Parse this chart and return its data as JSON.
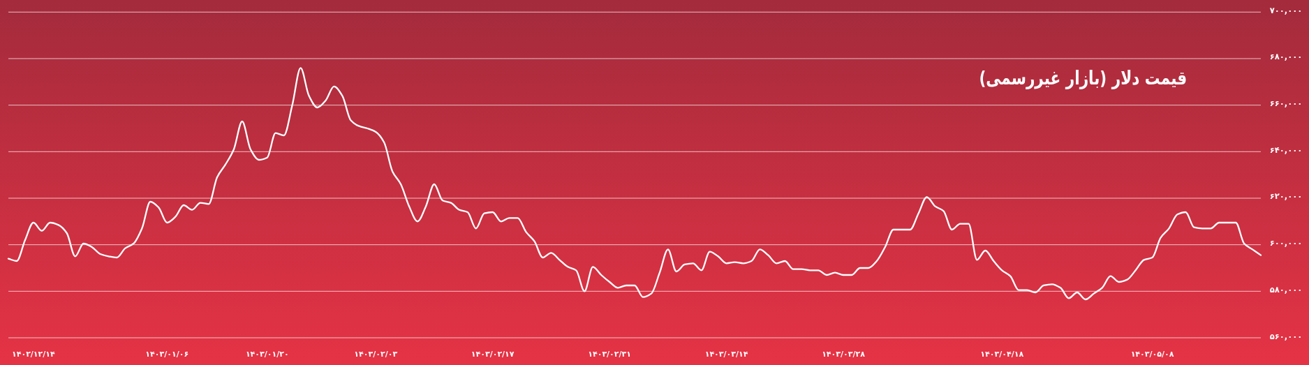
{
  "chart_data": {
    "type": "line",
    "title": "قیمت دلار (بازار غیررسمی)",
    "categories": [
      null,
      null,
      null,
      "۱۴۰۲/۱۲/۱۴",
      null,
      null,
      null,
      null,
      null,
      null,
      null,
      null,
      null,
      null,
      null,
      null,
      null,
      null,
      null,
      "۱۴۰۳/۰۱/۰۶",
      null,
      null,
      null,
      null,
      null,
      null,
      null,
      null,
      null,
      null,
      null,
      "۱۴۰۳/۰۱/۲۰",
      null,
      null,
      null,
      null,
      null,
      null,
      null,
      null,
      null,
      null,
      null,
      null,
      "۱۴۰۳/۰۲/۰۳",
      null,
      null,
      null,
      null,
      null,
      null,
      null,
      null,
      null,
      null,
      null,
      null,
      null,
      "۱۴۰۳/۰۲/۱۷",
      null,
      null,
      null,
      null,
      null,
      null,
      null,
      null,
      null,
      null,
      null,
      null,
      null,
      "۱۴۰۳/۰۲/۳۱",
      null,
      null,
      null,
      null,
      null,
      null,
      null,
      null,
      null,
      null,
      null,
      null,
      null,
      "۱۴۰۳/۰۳/۱۴",
      null,
      null,
      null,
      null,
      null,
      null,
      null,
      null,
      null,
      null,
      null,
      null,
      null,
      "۱۴۰۳/۰۳/۲۸",
      null,
      null,
      null,
      null,
      null,
      null,
      null,
      null,
      null,
      null,
      null,
      null,
      null,
      null,
      null,
      null,
      null,
      null,
      "۱۴۰۳/۰۴/۱۸",
      null,
      null,
      null,
      null,
      null,
      null,
      null,
      null,
      null,
      null,
      null,
      null,
      null,
      null,
      null,
      null,
      null,
      "۱۴۰۳/۰۵/۰۸",
      null,
      null,
      null,
      null,
      null,
      null,
      null,
      null,
      null,
      null,
      null,
      null,
      null
    ],
    "series": [
      {
        "color": "#ffffff",
        "values": [
          594000,
          593000,
          602000,
          609500,
          606000,
          609500,
          608500,
          605000,
          595000,
          600500,
          599000,
          596000,
          595000,
          594500,
          598500,
          600500,
          607000,
          618500,
          616000,
          609500,
          612000,
          617000,
          615000,
          618000,
          617500,
          629000,
          634500,
          641000,
          653000,
          641000,
          636500,
          637500,
          648000,
          647000,
          660000,
          676000,
          664000,
          659000,
          662000,
          668000,
          664000,
          653500,
          651000,
          650000,
          648500,
          644000,
          631500,
          626000,
          616500,
          610000,
          616500,
          626000,
          619000,
          618000,
          615000,
          614000,
          607000,
          613500,
          614000,
          610000,
          611500,
          611500,
          605500,
          601500,
          594500,
          596500,
          593500,
          590500,
          589000,
          580000,
          590500,
          587000,
          584000,
          581500,
          582500,
          582500,
          577500,
          579000,
          588000,
          598000,
          588500,
          591500,
          592000,
          589000,
          597000,
          595000,
          592000,
          592500,
          592000,
          593000,
          598000,
          595500,
          592000,
          593000,
          589500,
          589500,
          589000,
          589000,
          587000,
          588000,
          587000,
          587000,
          590000,
          590000,
          593000,
          599000,
          606500,
          606500,
          606500,
          613500,
          620500,
          616500,
          614500,
          606500,
          609000,
          609000,
          593500,
          597500,
          593000,
          589000,
          586500,
          580500,
          580500,
          579500,
          582500,
          583000,
          581500,
          577000,
          579500,
          576500,
          579000,
          581500,
          586500,
          584000,
          585000,
          589000,
          593500,
          594500,
          603000,
          607000,
          613000,
          614000,
          607500,
          607000,
          607000,
          609500,
          609500,
          609500,
          600500,
          598000,
          595500
        ]
      }
    ],
    "ylim": [
      560000,
      700000
    ],
    "yticks": [
      {
        "value": 560000,
        "label": "۵۶۰,۰۰۰"
      },
      {
        "value": 580000,
        "label": "۵۸۰,۰۰۰"
      },
      {
        "value": 600000,
        "label": "۶۰۰,۰۰۰"
      },
      {
        "value": 620000,
        "label": "۶۲۰,۰۰۰"
      },
      {
        "value": 640000,
        "label": "۶۴۰,۰۰۰"
      },
      {
        "value": 660000,
        "label": "۶۶۰,۰۰۰"
      },
      {
        "value": 680000,
        "label": "۶۸۰,۰۰۰"
      },
      {
        "value": 700000,
        "label": "۷۰۰,۰۰۰"
      }
    ],
    "grid": "y"
  }
}
